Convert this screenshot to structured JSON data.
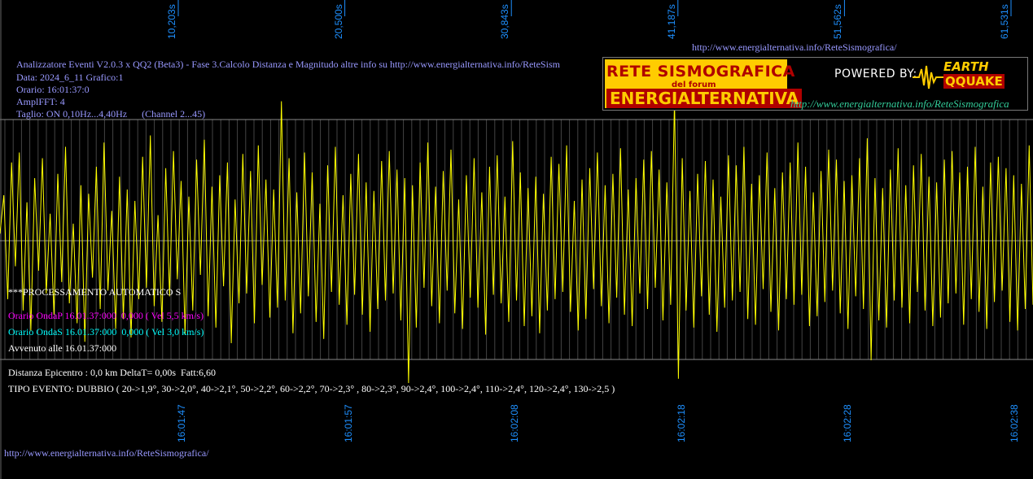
{
  "header": {
    "line1": "Analizzatore Eventi V2.0.3 x QQ2 (Beta3) - Fase 3.Calcolo Distanza e Magnitudo altre info su http://www.energialternativa.info/ReteSism",
    "line2": "Data: 2024_6_11 Grafico:1",
    "line3": "Orario: 16:01:37:0",
    "line4": "AmplFFT: 4",
    "line5": "Taglio: ON 0,10Hz...4,40Hz      (Channel 2...45)"
  },
  "top_url": "http://www.energialternativa.info/ReteSismografica/",
  "bottom_url": "http://www.energialternativa.info/ReteSismografica/",
  "logo": {
    "line1": "RETE SISMOGRAFICA",
    "line2": "del forum",
    "line3": "ENERGIALTERNATIVA",
    "powered": "POWERED BY:",
    "brand1": "EARTH",
    "brand2": "QQUAKE",
    "url": "http://www.energialternativa.info/ReteSismografica"
  },
  "analysis": {
    "processing": "***PROCESSAMENTO AUTOMATICO S",
    "onda_p": "Orario OndaP 16.01.37:000  0,000 ( Vel 5,5 km/s)",
    "onda_s": "Orario OndaS 16.01.37:000  0,000 ( Vel 3,0 km/s)",
    "avvenuto": "Avvenuto alle 16.01.37:000",
    "distanza": "Distanza Epicentro : 0,0 km DeltaT= 0,00s  Fatt:6,60",
    "tipo": "TIPO EVENTO: DUBBIO ( 20->1,9°, 30->2,0°, 40->2,1°, 50->2,2°, 60->2,2°, 70->2,3° , 80->2,3°, 90->2,4°, 100->2,4°, 110->2,4°, 120->2,4°, 130->2,5 )"
  },
  "colors": {
    "signal": "#ffff00",
    "grid": "#444444",
    "axis_label": "#1e90ff",
    "header_text": "#9999ff",
    "onda_p": "#ff00ff",
    "onda_s": "#00ffff"
  },
  "chart_data": {
    "type": "line",
    "title": "",
    "xlabel": "",
    "ylabel": "",
    "x_top_ticks": [
      "10,203s",
      "20,500s",
      "30,843s",
      "41,187s",
      "51,562s",
      "61,531s"
    ],
    "x_bottom_ticks": [
      "16:01:47",
      "16:01:57",
      "16:02:08",
      "16:02:18",
      "16:02:28",
      "16:02:38"
    ],
    "grid": true,
    "ylim": [
      -1,
      1
    ],
    "series": [
      {
        "values": [
          0.05,
          0.32,
          -0.41,
          0.55,
          -0.18,
          0.62,
          -0.49,
          0.27,
          -0.63,
          0.44,
          -0.21,
          0.58,
          -0.37,
          0.19,
          -0.52,
          0.47,
          -0.29,
          0.66,
          -0.44,
          0.12,
          -0.58,
          0.39,
          -0.71,
          0.33,
          -0.26,
          0.52,
          -0.48,
          0.69,
          -0.35,
          0.21,
          -0.62,
          0.45,
          -0.55,
          0.36,
          -0.68,
          0.28,
          -0.41,
          0.59,
          -0.33,
          0.74,
          -0.46,
          0.18,
          -0.57,
          0.51,
          -0.39,
          0.63,
          -0.27,
          0.42,
          -0.66,
          0.31,
          -0.49,
          0.57,
          -0.24,
          0.71,
          -0.53,
          0.38,
          -0.61,
          0.46,
          -0.32,
          0.55,
          -0.72,
          0.29,
          -0.44,
          0.61,
          -0.37,
          0.49,
          -0.58,
          0.67,
          -0.31,
          0.43,
          -0.54,
          0.36,
          -0.47,
          0.98,
          -0.42,
          0.58,
          -0.65,
          0.34,
          -0.51,
          0.62,
          -0.39,
          0.48,
          -0.57,
          0.26,
          -0.69,
          0.53,
          -0.36,
          0.66,
          -0.45,
          0.32,
          -0.59,
          0.47,
          -0.38,
          0.61,
          -0.52,
          0.41,
          -0.64,
          0.35,
          -0.48,
          0.56,
          -0.42,
          0.63,
          -0.37,
          0.5,
          -0.56,
          0.44,
          -1.0,
          0.39,
          -0.61,
          0.55,
          -0.33,
          0.69,
          -0.46,
          0.38,
          -0.58,
          0.49,
          -0.35,
          0.64,
          -0.51,
          0.29,
          -0.62,
          0.46,
          -0.4,
          0.58,
          -0.47,
          0.34,
          -0.66,
          0.52,
          -0.38,
          0.6,
          -0.44,
          0.31,
          -0.57,
          0.7,
          -0.42,
          0.48,
          -0.6,
          0.37,
          -0.53,
          0.45,
          -0.65,
          0.33,
          -0.49,
          0.59,
          -0.41,
          0.54,
          -0.36,
          0.67,
          -0.5,
          0.28,
          -0.63,
          0.43,
          -0.55,
          0.51,
          -0.34,
          0.62,
          -0.46,
          0.39,
          -0.58,
          0.47,
          -0.4,
          0.65,
          -0.52,
          0.36,
          -0.6,
          0.44,
          -0.37,
          0.57,
          -0.48,
          0.63,
          -0.33,
          0.5,
          -0.56,
          0.41,
          -0.45,
          1.0,
          -0.97,
          0.58,
          -0.49,
          0.35,
          -0.61,
          0.47,
          -0.39,
          0.56,
          -0.52,
          0.43,
          -0.64,
          0.31,
          -0.47,
          0.6,
          -0.42,
          0.53,
          -0.36,
          0.66,
          -0.55,
          0.4,
          -0.59,
          0.46,
          -0.34,
          0.62,
          -0.5,
          0.37,
          -0.63,
          0.48,
          -0.41,
          0.55,
          -0.45,
          0.69,
          -0.38,
          0.52,
          -0.6,
          0.34,
          -0.53,
          0.49,
          -0.43,
          0.64,
          -0.35,
          0.57,
          -0.51,
          0.42,
          -0.62,
          0.46,
          -0.39,
          0.58,
          -0.48,
          0.72,
          -0.84,
          0.44,
          -0.56,
          0.37,
          -0.61,
          0.5,
          -0.42,
          0.65,
          -0.47,
          0.39,
          -0.58,
          0.53,
          -0.36,
          0.61,
          -0.49,
          0.45,
          -0.6,
          0.41,
          -0.54,
          0.57,
          -0.44,
          0.63,
          -0.37,
          0.48,
          -0.59,
          0.52,
          -0.41,
          0.66,
          -0.5,
          0.38,
          -0.62,
          0.55,
          -0.43,
          0.59,
          -0.35,
          0.51,
          -0.57,
          0.46,
          -0.63,
          0.4,
          -0.48,
          0.67,
          -0.45
        ]
      }
    ]
  }
}
